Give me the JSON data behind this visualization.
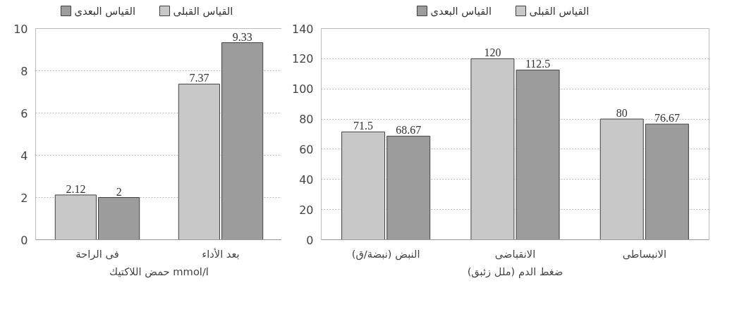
{
  "chart_data": [
    {
      "type": "bar",
      "categories": [
        "فى الراحة",
        "بعد الأداء"
      ],
      "xlabel": "حمض اللاكتيك mmol/l",
      "series": [
        {
          "name": "القياس القبلى",
          "color": "#c8c8c8",
          "values": [
            2.12,
            7.37
          ]
        },
        {
          "name": "القياس البعدى",
          "color": "#9c9c9c",
          "values": [
            2,
            9.33
          ]
        }
      ],
      "ylim": [
        0,
        10
      ],
      "yticks": [
        0,
        2,
        4,
        6,
        8,
        10
      ],
      "grid": "y",
      "legend": "top",
      "data_labels": true
    },
    {
      "type": "bar",
      "categories": [
        "النبض (نبضة/ق)",
        "الانقباضى",
        "الانبساطى"
      ],
      "xlabel": "ضغط الدم (ملل زئبق)",
      "series": [
        {
          "name": "القياس القبلى",
          "color": "#c8c8c8",
          "values": [
            71.5,
            120,
            80
          ]
        },
        {
          "name": "القياس البعدى",
          "color": "#9c9c9c",
          "values": [
            68.67,
            112.5,
            76.67
          ]
        }
      ],
      "ylim": [
        0,
        140
      ],
      "yticks": [
        0,
        20,
        40,
        60,
        80,
        100,
        120,
        140
      ],
      "grid": "y",
      "legend": "top",
      "data_labels": true
    }
  ]
}
